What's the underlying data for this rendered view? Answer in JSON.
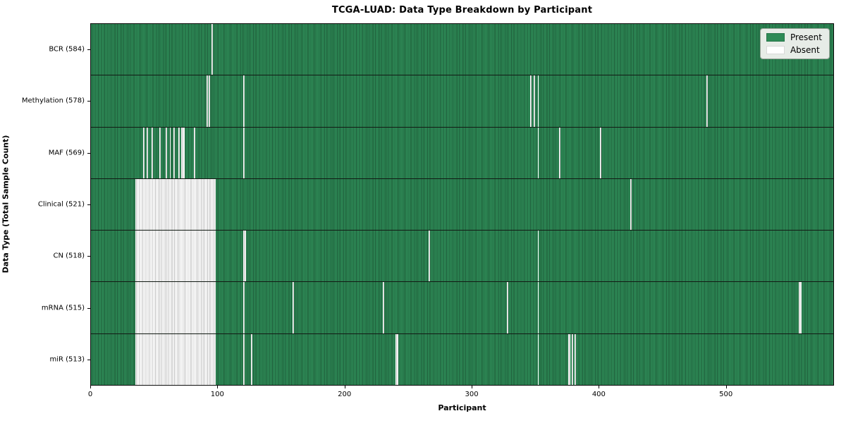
{
  "chart_data": {
    "type": "heatmap",
    "title": "TCGA-LUAD: Data Type Breakdown by Participant",
    "xlabel": "Participant",
    "ylabel": "Data Type (Total Sample Count)",
    "x_ticks": [
      0,
      100,
      200,
      300,
      400,
      500
    ],
    "x_range": [
      0,
      585
    ],
    "grid": false,
    "legend_position": "upper right",
    "legend": [
      {
        "label": "Present",
        "color": "#2e8b57"
      },
      {
        "label": "Absent",
        "color": "#ffffff"
      }
    ],
    "colors": {
      "present_fill": "#2e8b57",
      "present_edge": "#1e5c3a",
      "absent_fill": "#ffffff",
      "absent_edge": "#c2c2c2",
      "row_separator": "#121a14"
    },
    "rows": [
      {
        "label": "BCR (584)",
        "data_type": "BCR",
        "present_count": 584,
        "absent_ranges": [
          [
            95,
            1
          ]
        ]
      },
      {
        "label": "Methylation (578)",
        "data_type": "Methylation",
        "present_count": 578,
        "absent_ranges": [
          [
            91,
            1
          ],
          [
            93,
            1
          ],
          [
            120,
            1
          ],
          [
            346,
            1
          ],
          [
            349,
            1
          ],
          [
            352,
            1
          ],
          [
            485,
            1
          ]
        ]
      },
      {
        "label": "MAF (569)",
        "data_type": "MAF",
        "present_count": 569,
        "absent_ranges": [
          [
            41,
            1
          ],
          [
            44,
            1
          ],
          [
            48,
            1
          ],
          [
            54,
            1
          ],
          [
            59,
            1
          ],
          [
            62,
            1
          ],
          [
            65,
            1
          ],
          [
            69,
            1
          ],
          [
            71,
            3
          ],
          [
            81,
            1
          ],
          [
            120,
            1
          ],
          [
            352,
            1
          ],
          [
            369,
            1
          ],
          [
            401,
            1
          ]
        ]
      },
      {
        "label": "Clinical (521)",
        "data_type": "Clinical",
        "present_count": 521,
        "absent_ranges": [
          [
            35,
            63
          ],
          [
            425,
            1
          ]
        ]
      },
      {
        "label": "CN (518)",
        "data_type": "CN",
        "present_count": 518,
        "absent_ranges": [
          [
            35,
            63
          ],
          [
            120,
            2
          ],
          [
            266,
            1
          ],
          [
            352,
            1
          ]
        ]
      },
      {
        "label": "mRNA (515)",
        "data_type": "mRNA",
        "present_count": 515,
        "absent_ranges": [
          [
            35,
            63
          ],
          [
            120,
            1
          ],
          [
            159,
            1
          ],
          [
            230,
            1
          ],
          [
            328,
            1
          ],
          [
            352,
            1
          ],
          [
            558,
            2
          ]
        ]
      },
      {
        "label": "miR (513)",
        "data_type": "miR",
        "present_count": 513,
        "absent_ranges": [
          [
            35,
            63
          ],
          [
            120,
            1
          ],
          [
            126,
            1
          ],
          [
            240,
            2
          ],
          [
            352,
            1
          ],
          [
            376,
            2
          ],
          [
            379,
            1
          ],
          [
            381,
            1
          ]
        ]
      }
    ]
  }
}
